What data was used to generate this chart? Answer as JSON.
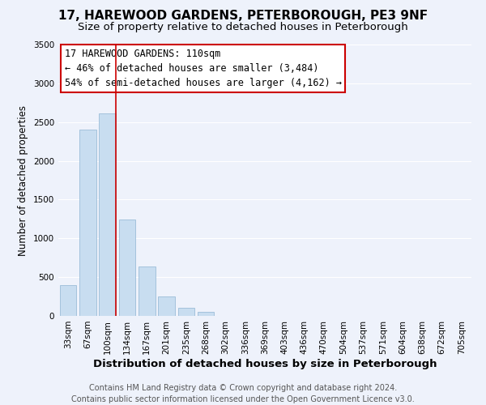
{
  "title": "17, HAREWOOD GARDENS, PETERBOROUGH, PE3 9NF",
  "subtitle": "Size of property relative to detached houses in Peterborough",
  "xlabel": "Distribution of detached houses by size in Peterborough",
  "ylabel": "Number of detached properties",
  "footer_lines": [
    "Contains HM Land Registry data © Crown copyright and database right 2024.",
    "Contains public sector information licensed under the Open Government Licence v3.0."
  ],
  "bar_labels": [
    "33sqm",
    "67sqm",
    "100sqm",
    "134sqm",
    "167sqm",
    "201sqm",
    "235sqm",
    "268sqm",
    "302sqm",
    "336sqm",
    "369sqm",
    "403sqm",
    "436sqm",
    "470sqm",
    "504sqm",
    "537sqm",
    "571sqm",
    "604sqm",
    "638sqm",
    "672sqm",
    "705sqm"
  ],
  "bar_values": [
    400,
    2400,
    2610,
    1240,
    640,
    255,
    100,
    50,
    0,
    0,
    0,
    0,
    0,
    0,
    0,
    0,
    0,
    0,
    0,
    0,
    0
  ],
  "bar_color": "#c8ddf0",
  "bar_edge_color": "#9bbdd8",
  "ylim": [
    0,
    3500
  ],
  "yticks": [
    0,
    500,
    1000,
    1500,
    2000,
    2500,
    3000,
    3500
  ],
  "vline_x_index": 2,
  "vline_color": "#cc0000",
  "annotation_title": "17 HAREWOOD GARDENS: 110sqm",
  "annotation_line1": "← 46% of detached houses are smaller (3,484)",
  "annotation_line2": "54% of semi-detached houses are larger (4,162) →",
  "annotation_box_color": "#ffffff",
  "annotation_box_edge": "#cc0000",
  "background_color": "#eef2fb",
  "grid_color": "#ffffff",
  "title_fontsize": 11,
  "subtitle_fontsize": 9.5,
  "xlabel_fontsize": 9.5,
  "ylabel_fontsize": 8.5,
  "tick_fontsize": 7.5,
  "annotation_fontsize": 8.5,
  "footer_fontsize": 7.0
}
